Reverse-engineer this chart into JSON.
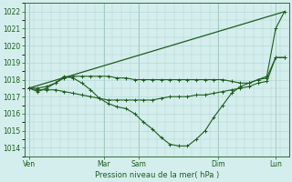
{
  "xlabel": "Pression niveau de la mer( hPa )",
  "bg_color": "#d4eeed",
  "grid_color": "#aed4d0",
  "line_color": "#1e5c1e",
  "ylim": [
    1013.5,
    1022.5
  ],
  "yticks": [
    1014,
    1015,
    1016,
    1017,
    1018,
    1019,
    1020,
    1021,
    1022
  ],
  "xlim": [
    0,
    30
  ],
  "day_x": [
    0.5,
    9,
    13,
    22,
    28.5
  ],
  "day_lbls": [
    "Ven",
    "Mar",
    "Sam",
    "Dim",
    "Lun"
  ],
  "vline_x": [
    0.5,
    9,
    13,
    22,
    28.5
  ],
  "series": [
    {
      "x": [
        0.5,
        29.5
      ],
      "y": [
        1017.5,
        1022.0
      ],
      "marker": false
    },
    {
      "x": [
        0.5,
        1.5,
        2.5,
        3.5,
        4.5,
        5.5,
        6.5,
        7.5,
        8.5,
        9.5,
        10.5,
        11.5,
        12.5,
        13.5,
        14.5,
        15.5,
        16.5,
        17.5,
        18.5,
        19.5,
        20.5,
        21.5,
        22.5,
        23.5,
        24.5,
        25.5,
        26.5,
        27.5,
        28.5,
        29.5
      ],
      "y": [
        1017.5,
        1017.3,
        1017.5,
        1017.8,
        1018.2,
        1018.1,
        1017.8,
        1017.4,
        1016.9,
        1016.6,
        1016.4,
        1016.3,
        1016.0,
        1015.5,
        1015.1,
        1014.6,
        1014.2,
        1014.1,
        1014.1,
        1014.5,
        1015.0,
        1015.8,
        1016.5,
        1017.2,
        1017.6,
        1017.8,
        1018.0,
        1018.2,
        1021.0,
        1022.0
      ],
      "marker": true
    },
    {
      "x": [
        0.5,
        1.5,
        2.5,
        3.5,
        4.5,
        5.5,
        6.5,
        7.5,
        8.5,
        9.5,
        10.5,
        11.5,
        12.5,
        13.5,
        14.5,
        15.5,
        16.5,
        17.5,
        18.5,
        19.5,
        20.5,
        21.5,
        22.5,
        23.5,
        24.5,
        25.5,
        26.5,
        27.5,
        28.5,
        29.5
      ],
      "y": [
        1017.5,
        1017.5,
        1017.6,
        1017.8,
        1018.1,
        1018.2,
        1018.2,
        1018.2,
        1018.2,
        1018.2,
        1018.1,
        1018.1,
        1018.0,
        1018.0,
        1018.0,
        1018.0,
        1018.0,
        1018.0,
        1018.0,
        1018.0,
        1018.0,
        1018.0,
        1018.0,
        1017.9,
        1017.8,
        1017.8,
        1018.0,
        1018.1,
        1019.3,
        1019.3
      ],
      "marker": true
    },
    {
      "x": [
        0.5,
        1.5,
        2.5,
        3.5,
        4.5,
        5.5,
        6.5,
        7.5,
        8.5,
        9.5,
        10.5,
        11.5,
        12.5,
        13.5,
        14.5,
        15.5,
        16.5,
        17.5,
        18.5,
        19.5,
        20.5,
        21.5,
        22.5,
        23.5,
        24.5,
        25.5,
        26.5,
        27.5,
        28.5,
        29.5
      ],
      "y": [
        1017.5,
        1017.4,
        1017.4,
        1017.4,
        1017.3,
        1017.2,
        1017.1,
        1017.0,
        1016.9,
        1016.8,
        1016.8,
        1016.8,
        1016.8,
        1016.8,
        1016.8,
        1016.9,
        1017.0,
        1017.0,
        1017.0,
        1017.1,
        1017.1,
        1017.2,
        1017.3,
        1017.4,
        1017.5,
        1017.6,
        1017.8,
        1017.9,
        1019.3,
        1019.3
      ],
      "marker": true
    }
  ]
}
